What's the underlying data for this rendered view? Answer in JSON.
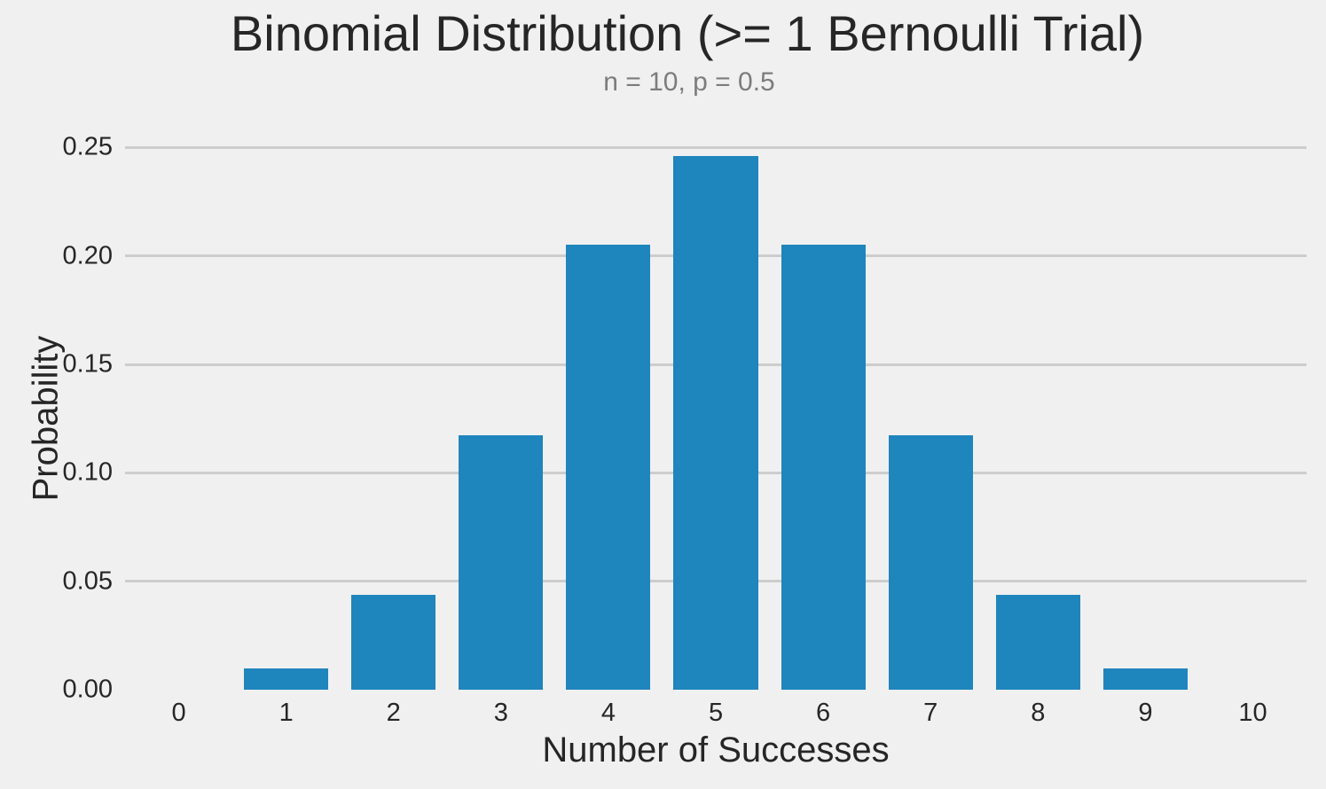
{
  "chart_data": {
    "type": "bar",
    "title": "Binomial Distribution (>= 1 Bernoulli Trial)",
    "subtitle": "n = 10, p = 0.5",
    "xlabel": "Number of Successes",
    "ylabel": "Probability",
    "categories": [
      "0",
      "1",
      "2",
      "3",
      "4",
      "5",
      "6",
      "7",
      "8",
      "9",
      "10"
    ],
    "values": [
      0.0,
      0.0098,
      0.0439,
      0.1172,
      0.2051,
      0.2461,
      0.2051,
      0.1172,
      0.0439,
      0.0098,
      0.0
    ],
    "yticks": [
      0.0,
      0.05,
      0.1,
      0.15,
      0.2,
      0.25
    ],
    "ytick_labels": [
      "0.00",
      "0.05",
      "0.10",
      "0.15",
      "0.20",
      "0.25"
    ],
    "ylim": [
      0,
      0.26
    ],
    "grid": "horizontal-behind-bars",
    "legend": "none",
    "bar_color": "#1f85bd",
    "background_color": "#f0f0f0",
    "grid_color": "#cdcdcd",
    "text_color": "#262626",
    "subtitle_color": "#7c7c7c"
  }
}
